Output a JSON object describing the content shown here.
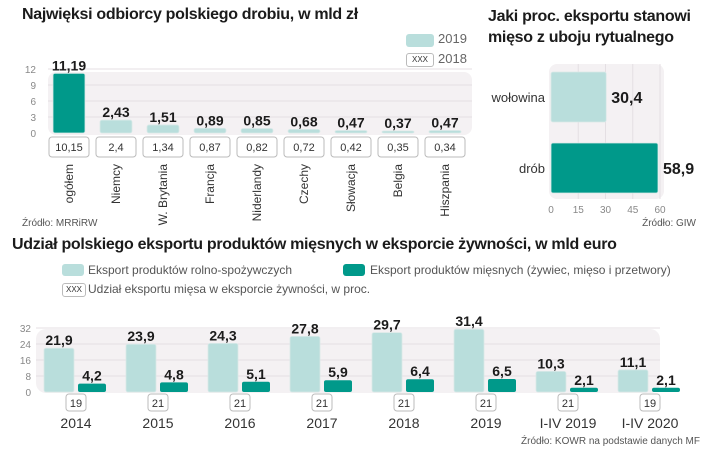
{
  "colors": {
    "light": "#b9dedc",
    "dark": "#00998a",
    "plot_bg": "#f4f1f3",
    "grid": "#e4dfe3"
  },
  "chart_data": [
    {
      "type": "bar",
      "title": "Najwięksi odbiorcy polskiego drobiu, w mld zł",
      "categories": [
        "ogółem",
        "Niemcy",
        "W. Brytania",
        "Francja",
        "Niderlandy",
        "Czechy",
        "Słowacja",
        "Belgia",
        "Hiszpania"
      ],
      "series": [
        {
          "name": "2019",
          "values": [
            11.19,
            2.43,
            1.51,
            0.89,
            0.85,
            0.68,
            0.47,
            0.37,
            0.47
          ],
          "labels": [
            "11,19",
            "2,43",
            "1,51",
            "0,89",
            "0,85",
            "0,68",
            "0,47",
            "0,37",
            "0,47"
          ]
        },
        {
          "name": "2018",
          "values": [
            10.15,
            2.4,
            1.34,
            0.87,
            0.82,
            0.72,
            0.42,
            0.35,
            0.34
          ],
          "labels": [
            "10,15",
            "2,4",
            "1,34",
            "0,87",
            "0,82",
            "0,72",
            "0,42",
            "0,35",
            "0,34"
          ]
        }
      ],
      "yticks": [
        "0",
        "3",
        "6",
        "9",
        "12"
      ],
      "ylim": [
        0,
        12
      ],
      "legend": [
        {
          "label": "2019",
          "swatch": "bar"
        },
        {
          "label": "2018",
          "swatch": "xxx",
          "swatch_text": "XXX"
        }
      ],
      "legend_position": "top-right",
      "source": "Źródło: MRRiRW",
      "grid": true
    },
    {
      "type": "bar",
      "orientation": "horizontal",
      "title_lines": [
        "Jaki proc. eksportu stanowi",
        "mięso z uboju rytualnego"
      ],
      "categories": [
        "wołowina",
        "drób"
      ],
      "values": [
        30.4,
        58.9
      ],
      "labels": [
        "30,4",
        "58,9"
      ],
      "xticks": [
        "0",
        "15",
        "30",
        "45",
        "60"
      ],
      "xlim": [
        0,
        60
      ],
      "source": "Źródło: GIW",
      "grid": true
    },
    {
      "type": "bar",
      "title": "Udział polskiego eksportu produktów mięsnych w eksporcie żywności, w mld euro",
      "categories": [
        "2014",
        "2015",
        "2016",
        "2017",
        "2018",
        "2019",
        "I-IV 2019",
        "I-IV 2020"
      ],
      "series": [
        {
          "name": "Eksport produktów rolno-spożywczych",
          "values": [
            21.9,
            23.9,
            24.3,
            27.8,
            29.7,
            31.4,
            10.3,
            11.1
          ],
          "labels": [
            "21,9",
            "23,9",
            "24,3",
            "27,8",
            "29,7",
            "31,4",
            "10,3",
            "11,1"
          ]
        },
        {
          "name": "Eksport produktów mięsnych (żywiec, mięso i przetwory)",
          "values": [
            4.2,
            4.8,
            5.1,
            5.9,
            6.4,
            6.5,
            2.1,
            2.1
          ],
          "labels": [
            "4,2",
            "4,8",
            "5,1",
            "5,9",
            "6,4",
            "6,5",
            "2,1",
            "2,1"
          ]
        },
        {
          "name": "Udział eksportu mięsa w eksporcie żywności, w proc.",
          "values": [
            19,
            21,
            21,
            21,
            21,
            21,
            21,
            19
          ],
          "labels": [
            "19",
            "21",
            "21",
            "21",
            "21",
            "21",
            "21",
            "19"
          ]
        }
      ],
      "yticks": [
        "0",
        "8",
        "16",
        "24",
        "32"
      ],
      "ylim": [
        0,
        32
      ],
      "legend_swatch_text": "XXX",
      "legend_position": "top",
      "source": "Źródło: KOWR na podstawie danych MF",
      "grid": true
    }
  ]
}
